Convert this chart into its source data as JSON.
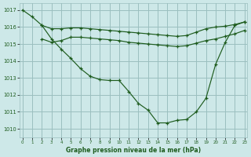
{
  "background_color": "#cde8e8",
  "grid_color": "#9bbfbf",
  "line_color": "#1e5c1e",
  "title": "Graphe pression niveau de la mer (hPa)",
  "ylim": [
    1009.5,
    1017.4
  ],
  "xlim": [
    -0.3,
    23.3
  ],
  "yticks": [
    1010,
    1011,
    1012,
    1013,
    1014,
    1015,
    1016,
    1017
  ],
  "xticks": [
    0,
    1,
    2,
    3,
    4,
    5,
    6,
    7,
    8,
    9,
    10,
    11,
    12,
    13,
    14,
    15,
    16,
    17,
    18,
    19,
    20,
    21,
    22,
    23
  ],
  "series": [
    {
      "x": [
        0,
        1,
        2,
        3,
        4,
        5,
        6,
        7,
        8,
        9,
        10,
        11,
        12,
        13,
        14,
        15,
        16,
        17,
        18,
        19,
        20,
        21,
        22,
        23
      ],
      "y": [
        1017.0,
        1016.6,
        1016.1,
        1015.3,
        1014.7,
        1014.15,
        1013.55,
        1013.1,
        1012.9,
        1012.85,
        1012.85,
        1012.2,
        1011.5,
        1011.1,
        1010.35,
        1010.35,
        1010.5,
        1010.55,
        1011.0,
        1011.8,
        1013.8,
        1015.1,
        1016.1,
        1016.3
      ]
    },
    {
      "x": [
        2,
        3,
        4,
        5,
        6,
        7,
        8,
        9,
        10,
        11,
        12,
        13,
        14,
        15,
        16,
        17,
        18,
        19,
        20,
        21,
        22,
        23
      ],
      "y": [
        1016.1,
        1015.9,
        1015.9,
        1015.95,
        1015.95,
        1015.9,
        1015.85,
        1015.8,
        1015.75,
        1015.7,
        1015.65,
        1015.6,
        1015.55,
        1015.5,
        1015.45,
        1015.5,
        1015.7,
        1015.9,
        1016.0,
        1016.05,
        1016.15,
        1016.3
      ]
    },
    {
      "x": [
        2,
        3,
        4,
        5,
        6,
        7,
        8,
        9,
        10,
        11,
        12,
        13,
        14,
        15,
        16,
        17,
        18,
        19,
        20,
        21,
        22,
        23
      ],
      "y": [
        1015.3,
        1015.1,
        1015.2,
        1015.4,
        1015.4,
        1015.35,
        1015.3,
        1015.25,
        1015.2,
        1015.1,
        1015.05,
        1015.0,
        1014.95,
        1014.9,
        1014.85,
        1014.9,
        1015.05,
        1015.2,
        1015.3,
        1015.45,
        1015.6,
        1015.8
      ]
    }
  ]
}
